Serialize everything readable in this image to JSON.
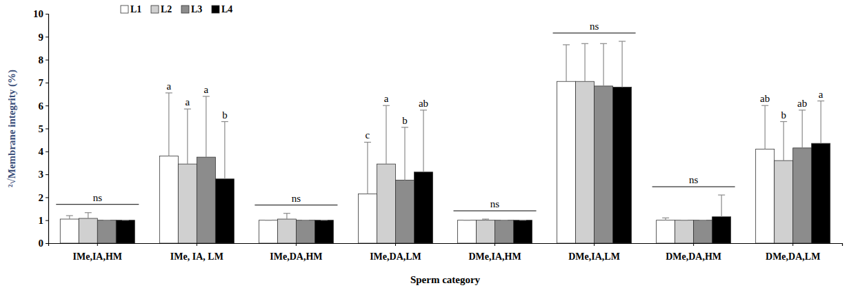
{
  "chart_data": {
    "type": "bar",
    "ylabel": "²√Membrane integrity (%)",
    "xlabel": "Sperm category",
    "categories": [
      "IMe,IA,HM",
      "IMe, IA, LM",
      "IMe,DA,HM",
      "IMe,DA,LM",
      "DMe,IA,HM",
      "DMe,IA,LM",
      "DMe,DA,HM",
      "DMe,DA,LM"
    ],
    "series": [
      {
        "name": "L1",
        "color": "#ffffff",
        "values": [
          1.05,
          3.8,
          1.0,
          2.15,
          1.0,
          7.05,
          1.0,
          4.1
        ],
        "errors": [
          0.15,
          2.75,
          0,
          2.25,
          0,
          1.6,
          0.1,
          1.9
        ],
        "letters": [
          null,
          "a",
          null,
          "c",
          null,
          null,
          null,
          "ab"
        ]
      },
      {
        "name": "L2",
        "color": "#d0d0d0",
        "values": [
          1.08,
          3.45,
          1.05,
          3.45,
          1.0,
          7.05,
          1.0,
          3.6
        ],
        "errors": [
          0.25,
          2.4,
          0.25,
          2.55,
          0.05,
          1.65,
          0,
          1.7
        ],
        "letters": [
          null,
          "a",
          null,
          "a",
          null,
          null,
          null,
          "b"
        ]
      },
      {
        "name": "L3",
        "color": "#8c8c8c",
        "values": [
          1.0,
          3.75,
          1.0,
          2.75,
          1.0,
          6.85,
          1.0,
          4.15
        ],
        "errors": [
          0,
          2.65,
          0,
          2.3,
          0,
          1.85,
          0,
          1.65
        ],
        "letters": [
          null,
          "a",
          null,
          "b",
          null,
          null,
          null,
          "ab"
        ]
      },
      {
        "name": "L4",
        "color": "#000000",
        "values": [
          1.0,
          2.8,
          1.0,
          3.1,
          1.0,
          6.8,
          1.15,
          4.35
        ],
        "errors": [
          0,
          2.5,
          0,
          2.7,
          0,
          2.0,
          0.95,
          1.85
        ],
        "letters": [
          null,
          "b",
          null,
          "ab",
          null,
          null,
          null,
          "a"
        ]
      }
    ],
    "annotations": [
      {
        "text": "ns",
        "category": "IMe,IA,HM"
      },
      {
        "text": "ns",
        "category": "IMe,DA,HM"
      },
      {
        "text": "ns",
        "category": "DMe,IA,HM"
      },
      {
        "text": "ns",
        "category": "DMe,IA,LM"
      },
      {
        "text": "ns",
        "category": "DMe,DA,HM"
      }
    ],
    "ylim": [
      0,
      10
    ],
    "yticks": [
      0,
      1,
      2,
      3,
      4,
      5,
      6,
      7,
      8,
      9,
      10
    ],
    "grid": false,
    "legend": "top-left"
  }
}
